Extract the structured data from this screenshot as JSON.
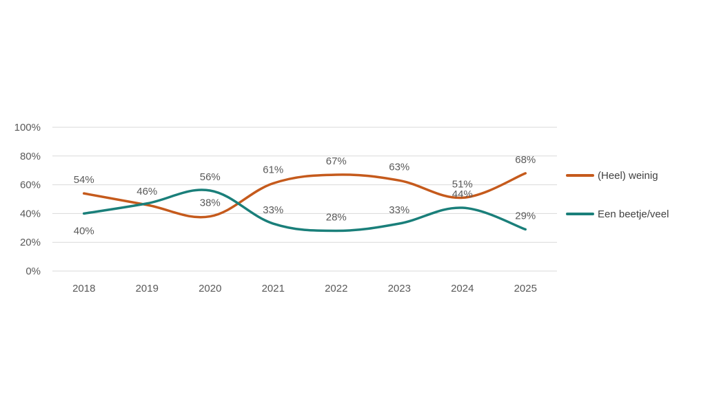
{
  "chart_data": {
    "type": "line",
    "title": "",
    "xlabel": "",
    "ylabel": "",
    "categories": [
      "2018",
      "2019",
      "2020",
      "2021",
      "2022",
      "2023",
      "2024",
      "2025"
    ],
    "ylim": [
      0,
      100
    ],
    "yticks": [
      0,
      20,
      40,
      60,
      80,
      100
    ],
    "ytick_labels": [
      "0%",
      "20%",
      "40%",
      "60%",
      "80%",
      "100%"
    ],
    "grid": true,
    "legend_position": "right",
    "smooth": true,
    "series": [
      {
        "name": "(Heel) weinig",
        "color": "#C55A1C",
        "values": [
          54,
          46,
          38,
          61,
          67,
          63,
          51,
          68
        ],
        "labels": [
          "54%",
          "46%",
          "38%",
          "61%",
          "67%",
          "63%",
          "51%",
          "68%"
        ],
        "label_positions": [
          "above",
          "above",
          "above",
          "above",
          "above",
          "above",
          "above",
          "above"
        ]
      },
      {
        "name": "Een beetje/veel",
        "color": "#1A7F7A",
        "values": [
          40,
          47,
          56,
          33,
          28,
          33,
          44,
          29
        ],
        "labels": [
          "40%",
          "",
          "56%",
          "33%",
          "28%",
          "33%",
          "44%",
          "29%"
        ],
        "label_positions": [
          "below",
          "above",
          "above",
          "above",
          "above",
          "above",
          "above",
          "above"
        ]
      }
    ]
  }
}
